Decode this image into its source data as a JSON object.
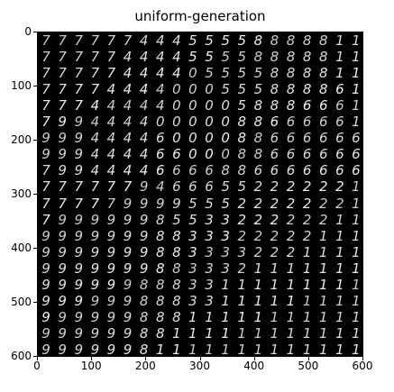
{
  "chart": {
    "title": "uniform-generation",
    "x_ticks": [
      "0",
      "100",
      "200",
      "300",
      "400",
      "500",
      "600"
    ],
    "y_ticks": [
      "0",
      "100",
      "200",
      "300",
      "400",
      "500",
      "600"
    ],
    "grid_rows": 20,
    "grid_cols": 20,
    "digits": [
      "77777744455558888811",
      "77777444455558888811",
      "77777444405555888811",
      "77774444000555888861",
      "77744444000058886661",
      "79944440000088666661",
      "99944446000088666666",
      "99944446600088666666",
      "79944446666886666666",
      "77777794666552222221",
      "77777999955522222221",
      "79999998553322222211",
      "99999998833322222111",
      "99999998833332221111",
      "99999998833321111111",
      "99999988833111111111",
      "99999988833111111111",
      "99999988811111111111",
      "99999988111111111111",
      "99999981111111111111"
    ]
  }
}
